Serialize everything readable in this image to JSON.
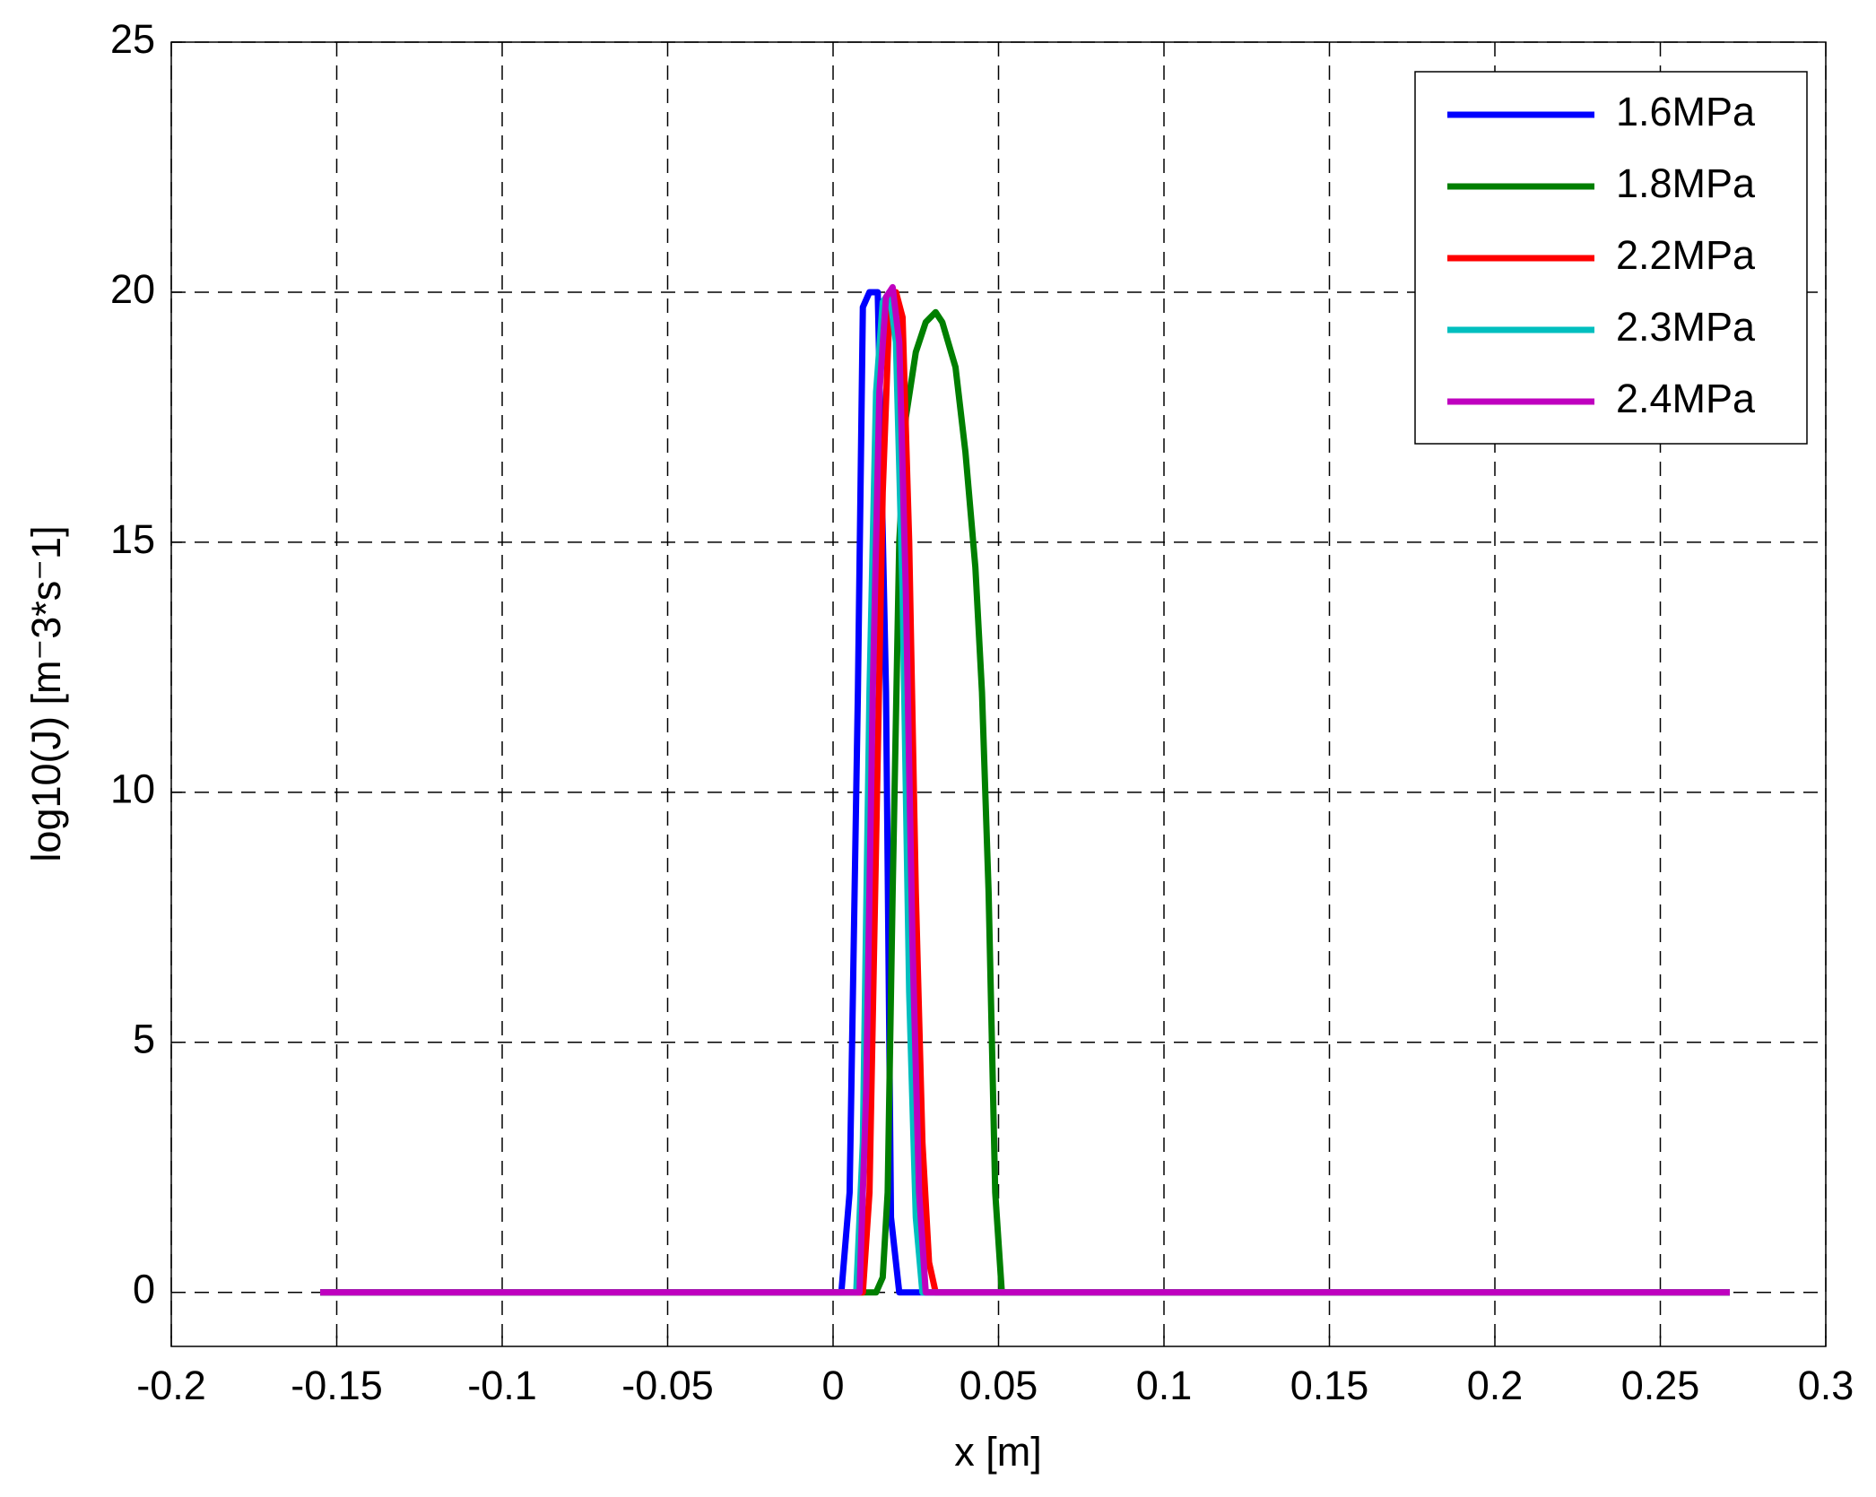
{
  "chart_data": {
    "type": "line",
    "xlabel": "x [m]",
    "ylabel": "log10(J) [m⁻3*s⁻1]",
    "xlim": [
      -0.2,
      0.3
    ],
    "ylim": [
      -1.08,
      25
    ],
    "xticks": [
      -0.2,
      -0.15,
      -0.1,
      -0.05,
      0,
      0.05,
      0.1,
      0.15,
      0.2,
      0.25,
      0.3
    ],
    "yticks": [
      0,
      5,
      10,
      15,
      20,
      25
    ],
    "grid": true,
    "legend": "upper right",
    "series": [
      {
        "name": "1.6MPa",
        "color": "#0000ff",
        "x": [
          -0.155,
          0.0025,
          0.005,
          0.0075,
          0.009,
          0.011,
          0.0135,
          0.016,
          0.0175,
          0.02,
          0.271
        ],
        "values": [
          0,
          0,
          2,
          12,
          19.7,
          20,
          20,
          12,
          1.5,
          0,
          0
        ]
      },
      {
        "name": "1.8MPa",
        "color": "#007f00",
        "x": [
          -0.155,
          0.013,
          0.015,
          0.0165,
          0.018,
          0.02,
          0.022,
          0.025,
          0.028,
          0.031,
          0.033,
          0.037,
          0.04,
          0.043,
          0.045,
          0.047,
          0.049,
          0.051,
          0.271
        ],
        "values": [
          0,
          0,
          0.3,
          2,
          8,
          15,
          17.5,
          18.8,
          19.4,
          19.6,
          19.4,
          18.5,
          16.8,
          14.5,
          12,
          8,
          2,
          0,
          0
        ]
      },
      {
        "name": "2.2MPa",
        "color": "#ff0000",
        "x": [
          -0.155,
          0.009,
          0.011,
          0.013,
          0.015,
          0.017,
          0.019,
          0.021,
          0.023,
          0.025,
          0.027,
          0.029,
          0.031,
          0.271
        ],
        "values": [
          0,
          0,
          2,
          9,
          16,
          19.6,
          20,
          19.5,
          15,
          8,
          3,
          0.6,
          0,
          0
        ]
      },
      {
        "name": "2.3MPa",
        "color": "#00bfbf",
        "x": [
          -0.155,
          0.007,
          0.009,
          0.011,
          0.013,
          0.015,
          0.017,
          0.019,
          0.021,
          0.023,
          0.025,
          0.027,
          0.271
        ],
        "values": [
          0,
          0,
          3,
          12,
          18,
          19.8,
          20,
          19,
          14,
          6,
          1.5,
          0,
          0
        ]
      },
      {
        "name": "2.4MPa",
        "color": "#bf00bf",
        "x": [
          -0.155,
          0.008,
          0.01,
          0.012,
          0.014,
          0.016,
          0.018,
          0.02,
          0.022,
          0.024,
          0.026,
          0.028,
          0.271
        ],
        "values": [
          0,
          0,
          4,
          12,
          18,
          19.9,
          20.1,
          19,
          14,
          7,
          2,
          0,
          0
        ]
      }
    ]
  }
}
